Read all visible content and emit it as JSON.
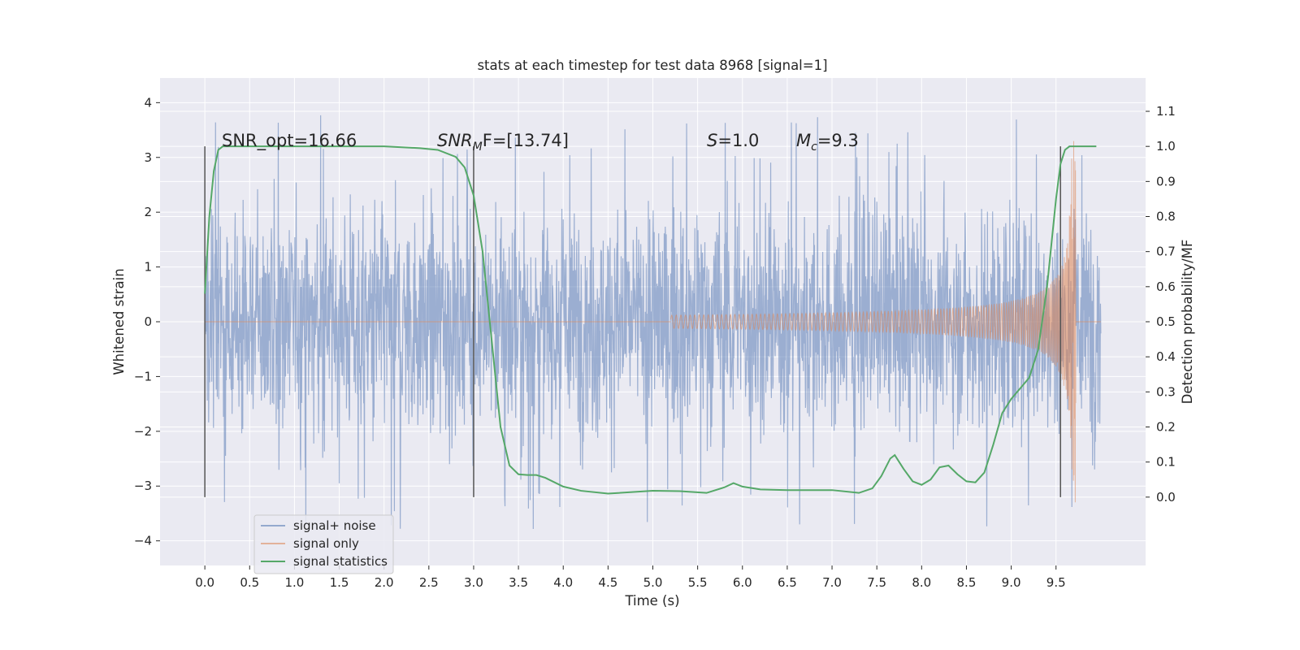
{
  "chart_data": {
    "type": "line",
    "title": "stats at each timestep for test data 8968 [signal=1]",
    "xlabel": "Time (s)",
    "ylabel": "Whitened strain",
    "y2label": "Detection probability/MF",
    "xlim": [
      -0.5,
      10.5
    ],
    "ylim": [
      -4.45,
      4.45
    ],
    "y2lim": [
      -0.195,
      1.195
    ],
    "x_ticks": [
      "0.0",
      "0.5",
      "1.0",
      "1.5",
      "2.0",
      "2.5",
      "3.0",
      "3.5",
      "4.0",
      "4.5",
      "5.0",
      "5.5",
      "6.0",
      "6.5",
      "7.0",
      "7.5",
      "8.0",
      "8.5",
      "9.0",
      "9.5"
    ],
    "y_ticks": [
      "4",
      "3",
      "2",
      "1",
      "0",
      "−1",
      "−2",
      "−3",
      "−4"
    ],
    "y_tick_values": [
      4,
      3,
      2,
      1,
      0,
      -1,
      -2,
      -3,
      -4
    ],
    "y2_ticks": [
      "1.1",
      "1.0",
      "0.9",
      "0.8",
      "0.7",
      "0.6",
      "0.5",
      "0.4",
      "0.3",
      "0.2",
      "0.1",
      "0.0"
    ],
    "y2_tick_values": [
      1.1,
      1.0,
      0.9,
      0.8,
      0.7,
      0.6,
      0.5,
      0.4,
      0.3,
      0.2,
      0.1,
      0.0
    ],
    "grid": true,
    "legend_position": "bottom-left",
    "annotations": {
      "snr_opt": "SNR_opt=16.66",
      "snr_mf_main": "SNR",
      "snr_mf_sub": "M",
      "snr_mf_tail": "F=[13.74]",
      "s_var": "S",
      "s_tail": "=1.0",
      "mc_main": "M",
      "mc_sub": "c",
      "mc_tail": "=9.3"
    },
    "vertical_markers": [
      0.0,
      3.0,
      9.55
    ],
    "colors": {
      "background": "#eaeaf2",
      "grid": "#ffffff",
      "noise": "#4c72b0",
      "signal": "#dd8452",
      "stats": "#55a868",
      "marker": "#555555"
    },
    "series": [
      {
        "name": "signal+ noise",
        "axis": "left",
        "description_range": [
          0.0,
          10.0
        ],
        "typical_amplitude": 1.3,
        "extreme_min": -4.1,
        "extreme_max": 4.05
      },
      {
        "name": "signal only",
        "axis": "left",
        "chirp_start": 5.2,
        "chirp_end": 9.72,
        "peak_amplitude": 3.3,
        "peak_time": 9.68
      },
      {
        "name": "signal statistics",
        "axis": "right",
        "x": [
          0.0,
          0.05,
          0.1,
          0.15,
          0.2,
          0.3,
          0.5,
          1.0,
          1.5,
          2.0,
          2.4,
          2.6,
          2.8,
          2.9,
          3.0,
          3.1,
          3.2,
          3.3,
          3.4,
          3.5,
          3.6,
          3.7,
          3.8,
          4.0,
          4.2,
          4.5,
          5.0,
          5.3,
          5.6,
          5.8,
          5.9,
          6.0,
          6.2,
          6.5,
          7.0,
          7.3,
          7.45,
          7.55,
          7.65,
          7.7,
          7.8,
          7.9,
          8.0,
          8.1,
          8.2,
          8.3,
          8.4,
          8.5,
          8.6,
          8.7,
          8.8,
          8.9,
          9.0,
          9.1,
          9.2,
          9.3,
          9.4,
          9.5,
          9.55,
          9.6,
          9.65,
          9.7,
          9.8,
          9.95
        ],
        "values": [
          0.58,
          0.8,
          0.93,
          0.99,
          1.0,
          1.0,
          1.0,
          1.0,
          1.0,
          1.0,
          0.995,
          0.99,
          0.97,
          0.94,
          0.86,
          0.7,
          0.45,
          0.2,
          0.09,
          0.065,
          0.063,
          0.063,
          0.055,
          0.03,
          0.018,
          0.01,
          0.018,
          0.017,
          0.012,
          0.028,
          0.04,
          0.03,
          0.022,
          0.02,
          0.02,
          0.012,
          0.025,
          0.06,
          0.11,
          0.12,
          0.08,
          0.045,
          0.035,
          0.05,
          0.085,
          0.09,
          0.065,
          0.045,
          0.042,
          0.07,
          0.15,
          0.24,
          0.28,
          0.31,
          0.34,
          0.42,
          0.6,
          0.85,
          0.95,
          0.99,
          1.0,
          1.0,
          1.0,
          1.0
        ]
      }
    ]
  }
}
